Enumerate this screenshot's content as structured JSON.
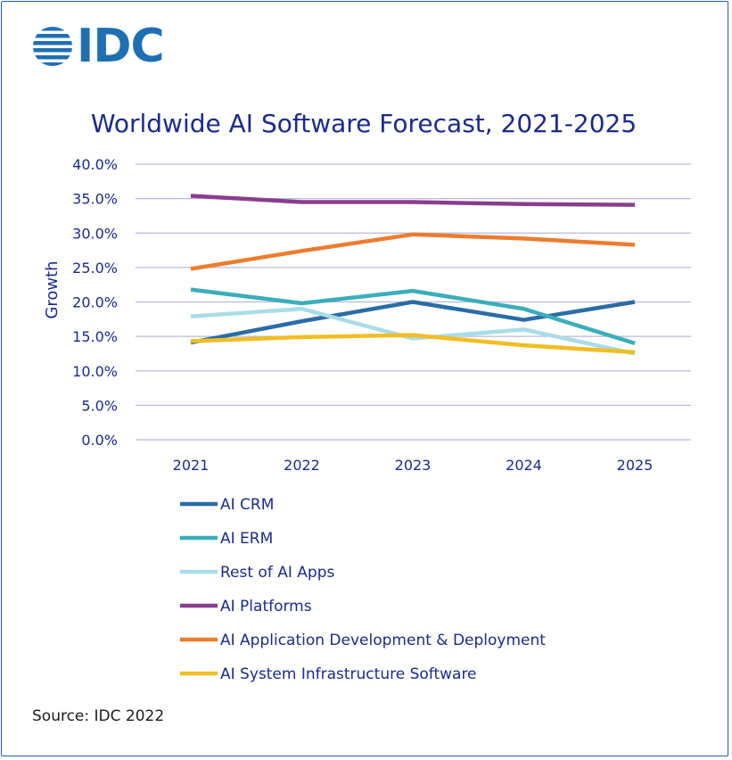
{
  "brand": {
    "logo_text": "IDC"
  },
  "source": "Source: IDC 2022",
  "chart_data": {
    "type": "line",
    "title": "Worldwide AI Software Forecast, 2021-2025",
    "xlabel": "",
    "ylabel": "Growth",
    "x": [
      "2021",
      "2022",
      "2023",
      "2024",
      "2025"
    ],
    "ylim": [
      0,
      40
    ],
    "yticks": [
      "0.0%",
      "5.0%",
      "10.0%",
      "15.0%",
      "20.0%",
      "25.0%",
      "30.0%",
      "35.0%",
      "40.0%"
    ],
    "grid": true,
    "legend_position": "bottom",
    "series": [
      {
        "name": "AI CRM",
        "color": "#2a6ca6",
        "values": [
          14.1,
          17.2,
          20.0,
          17.4,
          20.0
        ]
      },
      {
        "name": "AI ERM",
        "color": "#3aaebb",
        "values": [
          21.8,
          19.8,
          21.6,
          19.0,
          14.0
        ]
      },
      {
        "name": "Rest of AI Apps",
        "color": "#a9dce8",
        "values": [
          17.9,
          19.0,
          14.7,
          16.0,
          12.5
        ]
      },
      {
        "name": "AI Platforms",
        "color": "#8a3d8e",
        "values": [
          35.4,
          34.5,
          34.5,
          34.2,
          34.1
        ]
      },
      {
        "name": "AI Application Development & Deployment",
        "color": "#ec7d2e",
        "values": [
          24.8,
          27.4,
          29.8,
          29.2,
          28.3
        ]
      },
      {
        "name": "AI System Infrastructure Software",
        "color": "#f1bd23",
        "values": [
          14.3,
          14.9,
          15.2,
          13.7,
          12.7
        ]
      }
    ]
  }
}
